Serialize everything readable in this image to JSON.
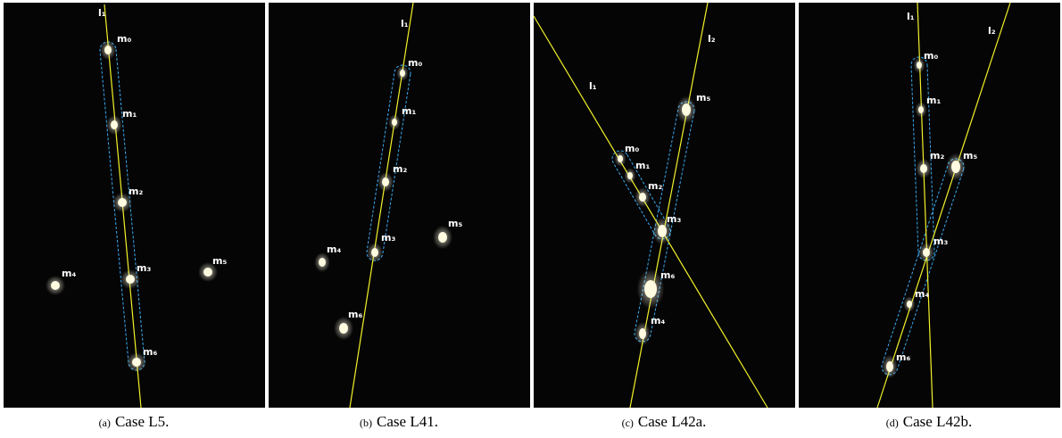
{
  "panels": [
    {
      "tag": "(a)",
      "caption": "Case L5.",
      "lines": [
        "l₁"
      ],
      "points": [
        "m₀",
        "m₁",
        "m₂",
        "m₃",
        "m₄",
        "m₅",
        "m₆"
      ]
    },
    {
      "tag": "(b)",
      "caption": "Case L41.",
      "lines": [
        "l₁"
      ],
      "points": [
        "m₀",
        "m₁",
        "m₂",
        "m₃",
        "m₄",
        "m₅",
        "m₆"
      ]
    },
    {
      "tag": "(c)",
      "caption": "Case L42a.",
      "lines": [
        "l₁",
        "l₂"
      ],
      "points": [
        "m₀",
        "m₁",
        "m₂",
        "m₃",
        "m₄",
        "m₅",
        "m₆"
      ]
    },
    {
      "tag": "(d)",
      "caption": "Case L42b.",
      "lines": [
        "l₁",
        "l₂"
      ],
      "points": [
        "m₀",
        "m₁",
        "m₂",
        "m₃",
        "m₄",
        "m₅",
        "m₆"
      ]
    }
  ]
}
